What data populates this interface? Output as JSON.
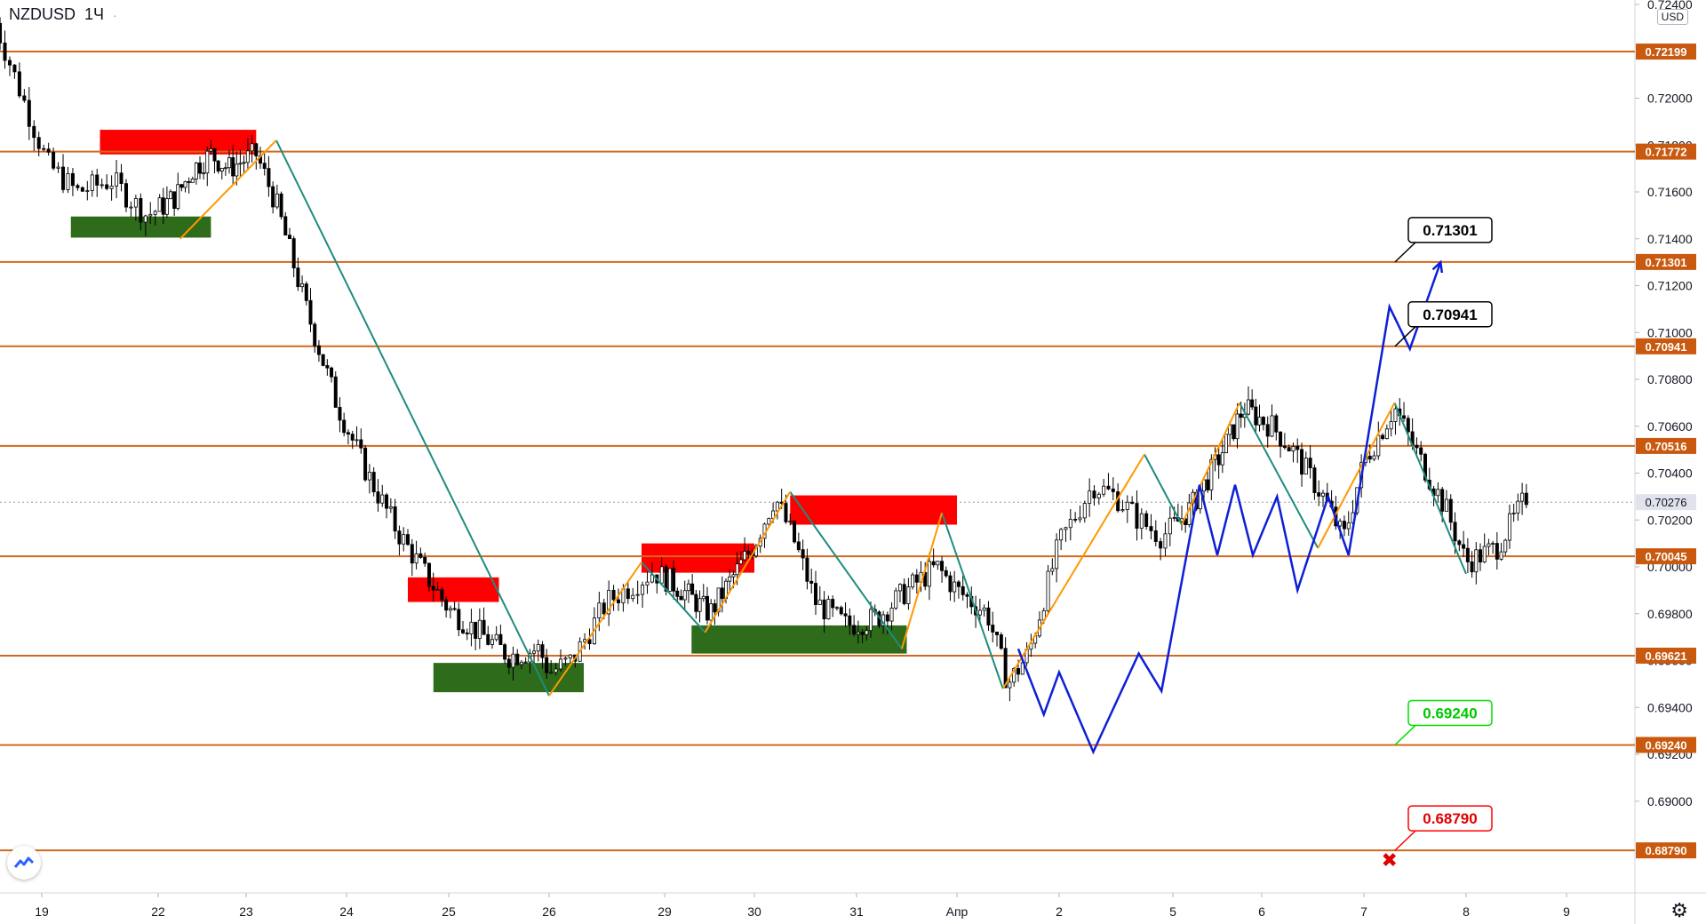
{
  "header": {
    "symbol": "NZDUSD",
    "interval": "1Ч",
    "menu_glyph": "·"
  },
  "currency_label": "USD",
  "chart_data": {
    "type": "candlestick",
    "symbol": "NZDUSD",
    "interval": "1Ч",
    "ylim": [
      0.684,
      0.7245
    ],
    "y_ticks": [
      "0.69000",
      "0.69200",
      "0.69400",
      "0.69600",
      "0.69800",
      "0.70000",
      "0.70200",
      "0.70400",
      "0.70600",
      "0.70800",
      "0.71000",
      "0.71200",
      "0.71400",
      "0.71600",
      "0.71800",
      "0.72000",
      "0.72400"
    ],
    "x_ticks": [
      {
        "label": "19",
        "d": 0
      },
      {
        "label": "22",
        "d": 1
      },
      {
        "label": "23",
        "d": 2
      },
      {
        "label": "24",
        "d": 3
      },
      {
        "label": "25",
        "d": 4
      },
      {
        "label": "26",
        "d": 5
      },
      {
        "label": "29",
        "d": 6
      },
      {
        "label": "30",
        "d": 7
      },
      {
        "label": "31",
        "d": 8
      },
      {
        "label": "Апр",
        "d": 9
      },
      {
        "label": "2",
        "d": 10
      },
      {
        "label": "5",
        "d": 11
      },
      {
        "label": "6",
        "d": 12
      },
      {
        "label": "7",
        "d": 13
      },
      {
        "label": "8",
        "d": 14
      },
      {
        "label": "9",
        "d": 15
      }
    ],
    "horizontal_levels": [
      {
        "label": "0.72199",
        "price": 0.72199
      },
      {
        "label": "0.71772",
        "price": 0.71772
      },
      {
        "label": "0.71301",
        "price": 0.71301
      },
      {
        "label": "0.70941",
        "price": 0.70941
      },
      {
        "label": "0.70516",
        "price": 0.70516
      },
      {
        "label": "0.70045",
        "price": 0.70045
      },
      {
        "label": "0.69621",
        "price": 0.69621
      },
      {
        "label": "0.69240",
        "price": 0.6924
      },
      {
        "label": "0.68790",
        "price": 0.6879
      }
    ],
    "current_price": {
      "label": "0.70276",
      "price": 0.70276
    },
    "price_path": [
      [
        -0.4,
        0.7232
      ],
      [
        -0.2,
        0.7205
      ],
      [
        0.05,
        0.7172
      ],
      [
        0.3,
        0.716
      ],
      [
        0.6,
        0.7165
      ],
      [
        0.9,
        0.715
      ],
      [
        1.2,
        0.7158
      ],
      [
        1.4,
        0.717
      ],
      [
        1.6,
        0.7176
      ],
      [
        1.8,
        0.717
      ],
      [
        2.1,
        0.7176
      ],
      [
        2.3,
        0.7155
      ],
      [
        2.6,
        0.711
      ],
      [
        2.9,
        0.707
      ],
      [
        3.2,
        0.704
      ],
      [
        3.5,
        0.7015
      ],
      [
        3.8,
        0.6995
      ],
      [
        4.0,
        0.6982
      ],
      [
        4.3,
        0.6972
      ],
      [
        4.6,
        0.6962
      ],
      [
        4.9,
        0.6965
      ],
      [
        5.0,
        0.6955
      ],
      [
        5.2,
        0.696
      ],
      [
        5.5,
        0.6985
      ],
      [
        5.9,
        0.6998
      ],
      [
        6.2,
        0.699
      ],
      [
        6.5,
        0.698
      ],
      [
        6.8,
        0.6998
      ],
      [
        7.0,
        0.701
      ],
      [
        7.2,
        0.703
      ],
      [
        7.4,
        0.701
      ],
      [
        7.6,
        0.6985
      ],
      [
        7.9,
        0.6975
      ],
      [
        8.2,
        0.6978
      ],
      [
        8.5,
        0.699
      ],
      [
        8.8,
        0.7
      ],
      [
        9.0,
        0.699
      ],
      [
        9.3,
        0.698
      ],
      [
        9.5,
        0.695
      ],
      [
        9.7,
        0.6963
      ],
      [
        10.0,
        0.701
      ],
      [
        10.3,
        0.7035
      ],
      [
        10.5,
        0.703
      ],
      [
        10.7,
        0.702
      ],
      [
        10.9,
        0.7013
      ],
      [
        11.2,
        0.7025
      ],
      [
        11.5,
        0.7045
      ],
      [
        11.8,
        0.7068
      ],
      [
        12.1,
        0.706
      ],
      [
        12.3,
        0.705
      ],
      [
        12.6,
        0.703
      ],
      [
        12.8,
        0.7012
      ],
      [
        13.0,
        0.7045
      ],
      [
        13.3,
        0.7068
      ],
      [
        13.5,
        0.705
      ],
      [
        13.8,
        0.7025
      ],
      [
        14.0,
        0.7002
      ],
      [
        14.3,
        0.7008
      ],
      [
        14.5,
        0.7022
      ],
      [
        14.6,
        0.703
      ]
    ],
    "zones": [
      {
        "kind": "supply",
        "d0": 0.5,
        "d1": 2.1,
        "p0": 0.7176,
        "p1": 0.71865
      },
      {
        "kind": "demand",
        "d0": 0.25,
        "d1": 1.6,
        "p0": 0.71405,
        "p1": 0.71495
      },
      {
        "kind": "supply",
        "d0": 3.6,
        "d1": 4.5,
        "p0": 0.6985,
        "p1": 0.69955
      },
      {
        "kind": "demand",
        "d0": 3.85,
        "d1": 5.3,
        "p0": 0.69465,
        "p1": 0.6959
      },
      {
        "kind": "supply",
        "d0": 5.8,
        "d1": 7.0,
        "p0": 0.69975,
        "p1": 0.701
      },
      {
        "kind": "demand",
        "d0": 6.3,
        "d1": 8.5,
        "p0": 0.6963,
        "p1": 0.6975
      },
      {
        "kind": "supply",
        "d0": 7.35,
        "d1": 9.0,
        "p0": 0.7018,
        "p1": 0.70305
      }
    ],
    "teal_lines": [
      [
        [
          2.3,
          0.7182
        ],
        [
          5.0,
          0.6945
        ]
      ],
      [
        [
          5.8,
          0.7002
        ],
        [
          6.45,
          0.6972
        ]
      ],
      [
        [
          7.35,
          0.7032
        ],
        [
          8.45,
          0.6965
        ]
      ],
      [
        [
          8.85,
          0.7023
        ],
        [
          9.45,
          0.6948
        ]
      ],
      [
        [
          10.75,
          0.7048
        ],
        [
          11.1,
          0.7018
        ]
      ],
      [
        [
          11.75,
          0.707
        ],
        [
          12.55,
          0.7008
        ]
      ],
      [
        [
          13.3,
          0.707
        ],
        [
          14.0,
          0.6997
        ]
      ]
    ],
    "orange_lines": [
      [
        [
          1.25,
          0.714
        ],
        [
          2.3,
          0.7182
        ]
      ],
      [
        [
          5.0,
          0.6945
        ],
        [
          5.8,
          0.7002
        ]
      ],
      [
        [
          6.45,
          0.6972
        ],
        [
          7.35,
          0.7032
        ]
      ],
      [
        [
          8.45,
          0.6965
        ],
        [
          8.85,
          0.7023
        ]
      ],
      [
        [
          9.45,
          0.6948
        ],
        [
          10.75,
          0.7048
        ]
      ],
      [
        [
          11.1,
          0.7018
        ],
        [
          11.75,
          0.707
        ]
      ],
      [
        [
          12.55,
          0.7008
        ],
        [
          13.3,
          0.707
        ]
      ]
    ],
    "projection_path": [
      [
        9.6,
        0.6965
      ],
      [
        9.85,
        0.6937
      ],
      [
        10.0,
        0.6955
      ],
      [
        10.3,
        0.6921
      ],
      [
        10.7,
        0.6963
      ],
      [
        10.9,
        0.6947
      ],
      [
        11.3,
        0.7035
      ],
      [
        11.5,
        0.7005
      ],
      [
        11.7,
        0.7035
      ],
      [
        11.9,
        0.7005
      ],
      [
        12.15,
        0.703
      ],
      [
        12.35,
        0.699
      ],
      [
        12.65,
        0.703
      ],
      [
        12.85,
        0.7005
      ],
      [
        13.25,
        0.7111
      ],
      [
        13.45,
        0.7093
      ],
      [
        13.75,
        0.713
      ]
    ],
    "callouts": [
      {
        "label": "0.71301",
        "price": 0.71301,
        "color": "black"
      },
      {
        "label": "0.70941",
        "price": 0.70941,
        "color": "black"
      },
      {
        "label": "0.69240",
        "price": 0.6924,
        "color": "green"
      },
      {
        "label": "0.68790",
        "price": 0.6879,
        "color": "red"
      }
    ],
    "target_marker": {
      "symbol": "✖",
      "d": 13.25,
      "price": 0.6875
    }
  },
  "colors": {
    "level_line": "#d2691e",
    "level_label_bg": "#c9590f",
    "supply": "#ff0000",
    "demand": "#2e6b1a",
    "teal": "#1e8c7e",
    "orange": "#ff9800",
    "projection": "#0d1fd6",
    "candle_up": "#000000",
    "candle_down": "#000000",
    "callout_green": "#00e000",
    "callout_red": "#ff0000"
  }
}
